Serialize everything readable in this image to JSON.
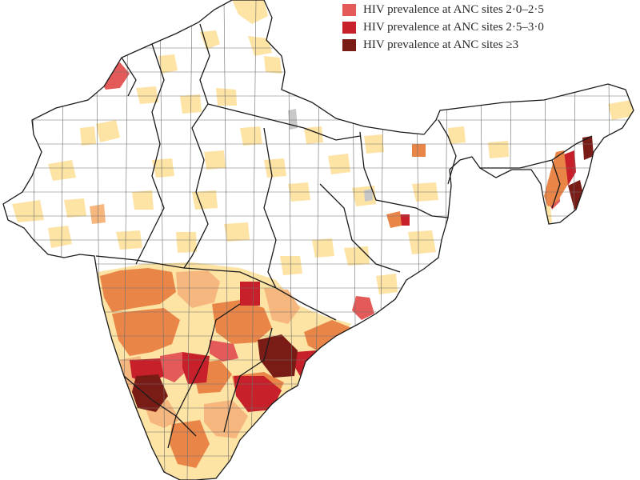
{
  "legend": {
    "items": [
      {
        "label": "HIV prevalence at ANC sites 2·0–2·5",
        "color": "#e35a58"
      },
      {
        "label": "HIV prevalence at ANC sites 2·5–3·0",
        "color": "#c8202a"
      },
      {
        "label": "HIV prevalence at ANC sites ≥3",
        "color": "#7a1c16"
      }
    ]
  },
  "colors": {
    "background": "#ffffff",
    "district_border": "#6e6e6e",
    "state_border": "#1a1a1a",
    "no_data": "#ffffff",
    "level_light": "#fde3a4",
    "level_peach": "#f6b77f",
    "level_orange": "#ea8548",
    "level_2_0_2_5": "#e35a58",
    "level_2_5_3_0": "#c8202a",
    "level_ge_3": "#7a1c16",
    "grey": "#c8c8c8"
  }
}
